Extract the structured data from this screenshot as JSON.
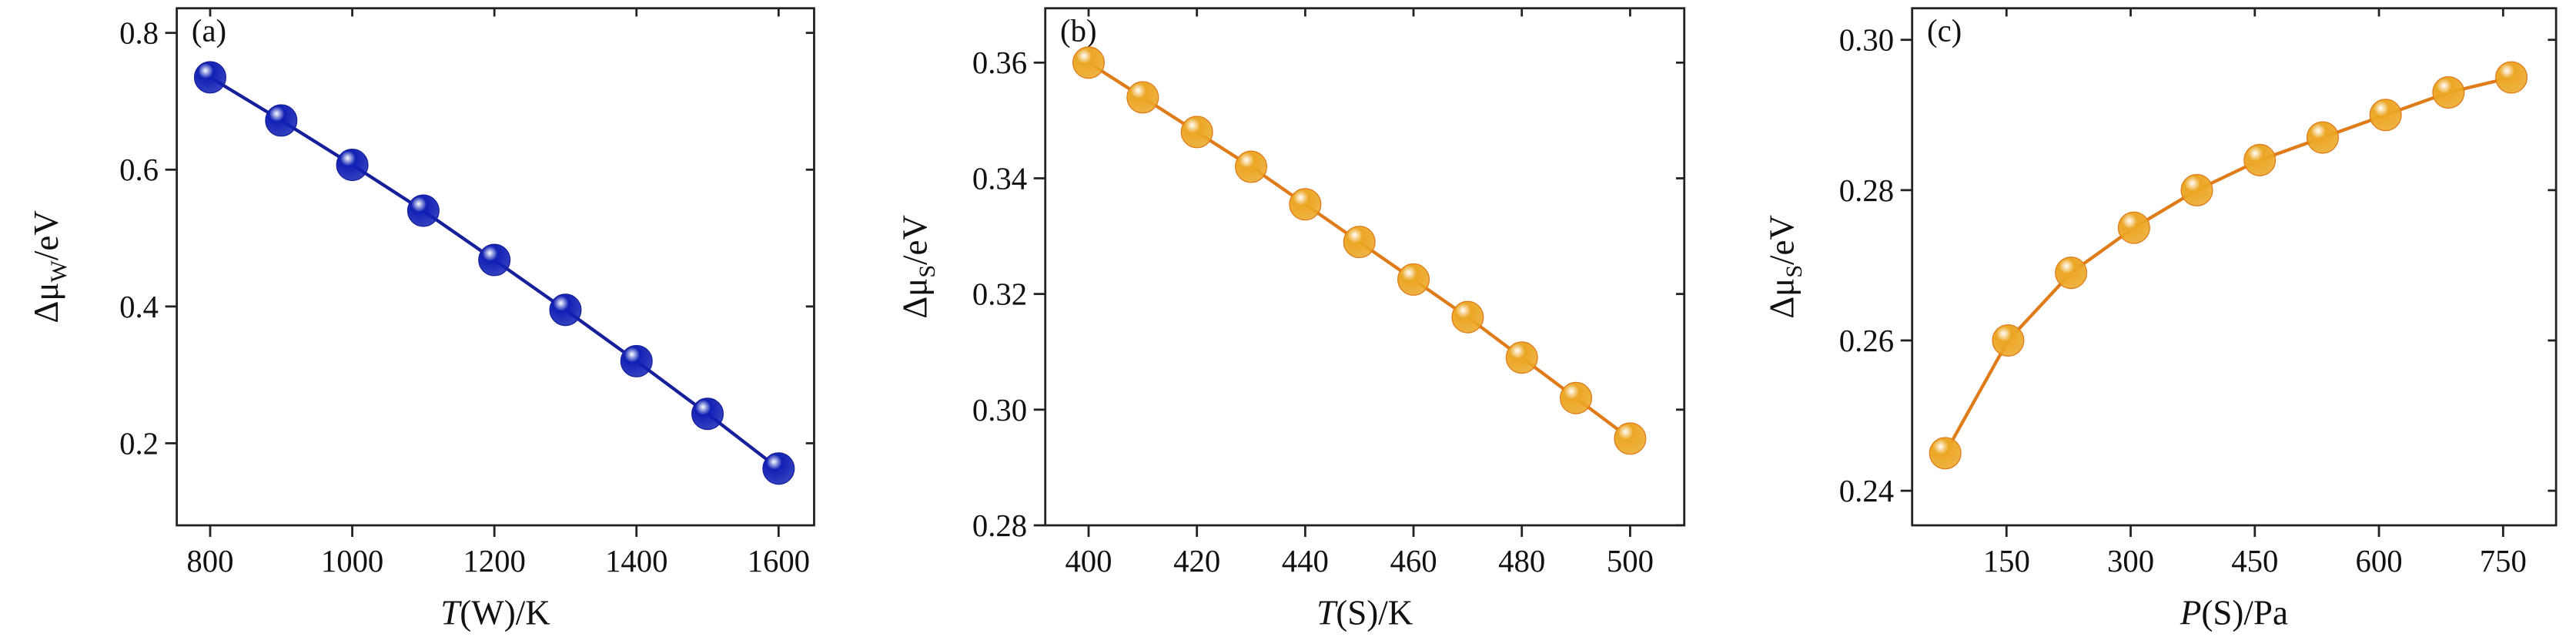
{
  "chart_data": [
    {
      "type": "line",
      "panel_label": "(a)",
      "x_label": {
        "var": "T",
        "rest": "(W)/K"
      },
      "y_label": {
        "main": "Δμ",
        "sub": "W",
        "unit": "/eV"
      },
      "x": [
        800,
        900,
        1000,
        1100,
        1200,
        1300,
        1400,
        1500,
        1600
      ],
      "series": [
        {
          "color": "#1020b4",
          "line_color": "#16209a",
          "values": [
            0.735,
            0.672,
            0.607,
            0.54,
            0.468,
            0.395,
            0.32,
            0.243,
            0.163
          ]
        }
      ],
      "xlim": [
        753,
        1650
      ],
      "ylim": [
        0.08,
        0.836
      ],
      "xticks": [
        800,
        1000,
        1200,
        1400,
        1600
      ],
      "yticks": [
        0.2,
        0.4,
        0.6,
        0.8
      ]
    },
    {
      "type": "line",
      "panel_label": "(b)",
      "x_label": {
        "var": "T",
        "rest": "(S)/K"
      },
      "y_label": {
        "main": "Δμ",
        "sub": "S",
        "unit": "/eV"
      },
      "x": [
        400,
        410,
        420,
        430,
        440,
        450,
        460,
        470,
        480,
        490,
        500
      ],
      "series": [
        {
          "color": "#eba624",
          "line_color": "#e07b1a",
          "values": [
            0.36,
            0.354,
            0.348,
            0.342,
            0.3355,
            0.329,
            0.3225,
            0.316,
            0.309,
            0.302,
            0.295
          ]
        }
      ],
      "xlim": [
        392,
        510
      ],
      "ylim": [
        0.28,
        0.3694
      ],
      "xticks": [
        400,
        420,
        440,
        460,
        480,
        500
      ],
      "yticks": [
        0.28,
        {
          "value": 0.3,
          "label": "0.30"
        },
        0.32,
        0.34,
        0.36
      ]
    },
    {
      "type": "line",
      "panel_label": "(c)",
      "x_label": {
        "var": "P",
        "rest": "(S)/Pa"
      },
      "y_label": {
        "main": "Δμ",
        "sub": "S",
        "unit": "/eV"
      },
      "x": [
        76,
        152,
        228,
        304,
        380,
        456,
        532,
        608,
        684,
        760
      ],
      "series": [
        {
          "color": "#eba624",
          "line_color": "#e07b1a",
          "values": [
            0.245,
            0.26,
            0.269,
            0.275,
            0.28,
            0.284,
            0.287,
            0.29,
            0.293,
            0.295
          ]
        }
      ],
      "xlim": [
        36,
        814
      ],
      "ylim": [
        0.2354,
        0.3042
      ],
      "xticks": [
        150,
        300,
        450,
        600,
        750
      ],
      "yticks": [
        0.24,
        0.26,
        0.28,
        {
          "value": 0.3,
          "label": "0.30"
        }
      ]
    }
  ]
}
